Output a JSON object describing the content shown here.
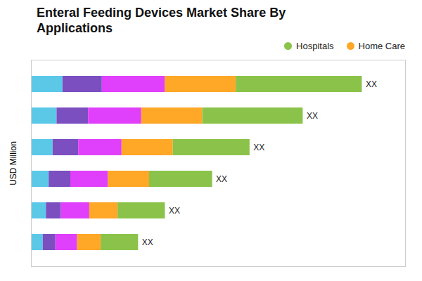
{
  "chart_data": {
    "type": "bar",
    "orientation": "horizontal",
    "stacked": true,
    "title": "Enteral Feeding Devices Market Share By\nApplications",
    "y_label": "USD Million",
    "categories": [
      null,
      null,
      null,
      null,
      null,
      null
    ],
    "series": [
      {
        "color": "#5BC8E8",
        "values": [
          0.8,
          0.65,
          0.55,
          0.45,
          0.38,
          0.3
        ]
      },
      {
        "color": "#7B4FBF",
        "values": [
          1.0,
          0.8,
          0.65,
          0.55,
          0.38,
          0.32
        ]
      },
      {
        "color": "#E040FB",
        "values": [
          1.6,
          1.35,
          1.1,
          0.95,
          0.72,
          0.55
        ]
      },
      {
        "name": "Home Care",
        "color": "#FFA726",
        "values": [
          1.8,
          1.55,
          1.3,
          1.05,
          0.72,
          0.6
        ]
      },
      {
        "name": "Hospitals",
        "color": "#8BC34A",
        "values": [
          3.2,
          2.55,
          1.95,
          1.6,
          1.2,
          0.95
        ]
      }
    ],
    "annotations": [
      "XX",
      "XX",
      "XX",
      "XX",
      "XX",
      "XX"
    ],
    "xlim": [
      0,
      9.5
    ],
    "xticks": [],
    "tick_labels": false,
    "grid": false,
    "legend": "top"
  }
}
